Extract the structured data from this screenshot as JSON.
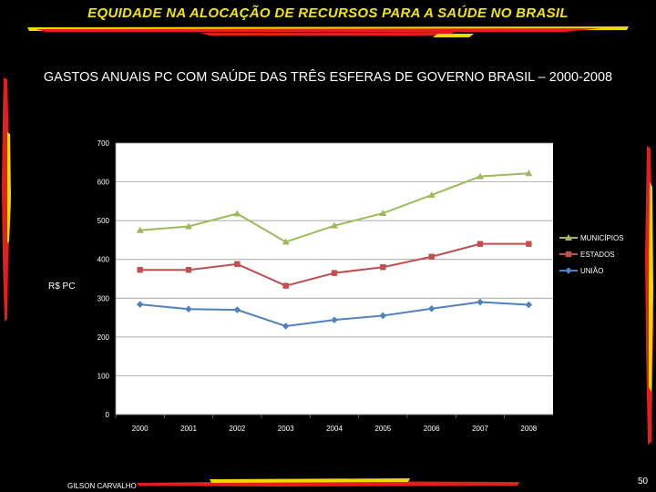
{
  "slide": {
    "title": "EQUIDADE NA ALOCAÇÃO DE RECURSOS PARA A SAÚDE NO BRASIL",
    "author": "GILSON CARVALHO",
    "page_number": "50"
  },
  "colors": {
    "background": "#000000",
    "title": "#f2e600",
    "accent_red": "#e0201c",
    "accent_yellow": "#f2d600",
    "municipios": "#9bbb59",
    "estados": "#c0504d",
    "uniao": "#4f81bd"
  },
  "chart_data": {
    "type": "line",
    "title": "GASTOS ANUAIS  PC COM SAÚDE DAS TRÊS ESFERAS DE GOVERNO  BRASIL – 2000-2008",
    "xlabel": "",
    "ylabel": "R$ PC",
    "categories": [
      "2000",
      "2001",
      "2002",
      "2003",
      "2004",
      "2005",
      "2006",
      "2007",
      "2008"
    ],
    "ylim": [
      0,
      700
    ],
    "yticks": [
      "0",
      "100",
      "200",
      "300",
      "400",
      "500",
      "600",
      "700"
    ],
    "grid": true,
    "legend_position": "right",
    "series": [
      {
        "name": "MUNICÍPIOS",
        "marker": "triangle",
        "values": [
          475,
          485,
          518,
          445,
          487,
          519,
          566,
          614,
          622
        ]
      },
      {
        "name": "ESTADOS",
        "marker": "square",
        "values": [
          373,
          373,
          388,
          332,
          365,
          380,
          407,
          440,
          440
        ]
      },
      {
        "name": "UNIÃO",
        "marker": "diamond",
        "values": [
          284,
          272,
          270,
          228,
          244,
          255,
          273,
          290,
          283
        ]
      }
    ]
  }
}
